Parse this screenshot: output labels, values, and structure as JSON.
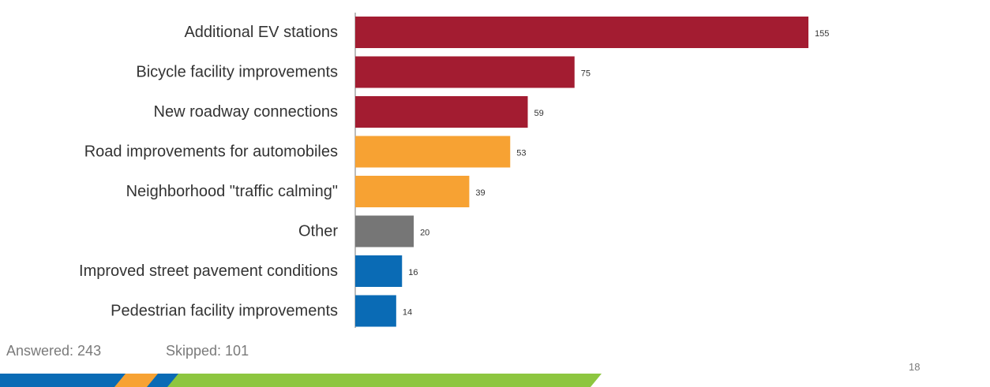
{
  "chart_data": {
    "type": "bar",
    "orientation": "horizontal",
    "categories": [
      "Additional EV stations",
      "Bicycle facility improvements",
      "New roadway connections",
      "Road improvements for automobiles",
      "Neighborhood \"traffic calming\"",
      "Other",
      "Improved street pavement conditions",
      "Pedestrian facility improvements"
    ],
    "values": [
      155,
      75,
      59,
      53,
      39,
      20,
      16,
      14
    ],
    "bar_colors": [
      "#a31c31",
      "#a31c31",
      "#a31c31",
      "#f7a233",
      "#f7a233",
      "#767676",
      "#0a6bb5",
      "#0a6bb5"
    ],
    "data_labels": [
      "155",
      "75",
      "59",
      "53",
      "39",
      "20",
      "16",
      "14"
    ],
    "title": "",
    "xlabel": "",
    "ylabel": "",
    "xlim": [
      0,
      155
    ],
    "grid": false
  },
  "footer": {
    "answered": "Answered: 243",
    "skipped": "Skipped: 101",
    "page_number": "18"
  },
  "colors": {
    "label_text": "#333333",
    "muted_text": "#7a7a7a",
    "axis_line": "#7a7a7a",
    "stripe_blue": "#0a6bb5",
    "stripe_orange": "#f7a233",
    "stripe_green": "#8dc640"
  }
}
